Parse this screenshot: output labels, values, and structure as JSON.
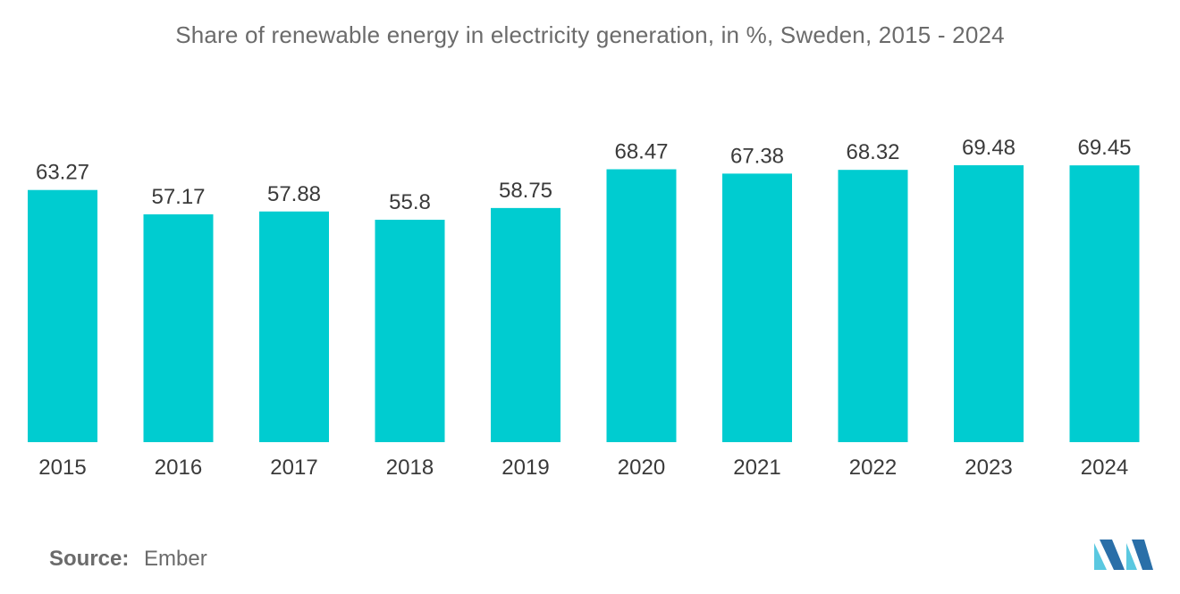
{
  "chart_data": {
    "type": "bar",
    "title": "Share of renewable energy in electricity generation, in %, Sweden, 2015 - 2024",
    "categories": [
      "2015",
      "2016",
      "2017",
      "2018",
      "2019",
      "2020",
      "2021",
      "2022",
      "2023",
      "2024"
    ],
    "values": [
      63.27,
      57.17,
      57.88,
      55.8,
      58.75,
      68.47,
      67.38,
      68.32,
      69.48,
      69.45
    ],
    "value_labels": [
      "63.27",
      "57.17",
      "57.88",
      "55.8",
      "58.75",
      "68.47",
      "67.38",
      "68.32",
      "69.48",
      "69.45"
    ],
    "xlabel": "",
    "ylabel": "",
    "ylim": [
      0,
      69.48
    ],
    "grid": false,
    "legend": "none",
    "bar_color": "#00ccd0"
  },
  "source": {
    "label": "Source:",
    "value": "Ember"
  },
  "logo": {
    "icon": "mordor-intelligence-logo-icon",
    "colors": [
      "#5ac8e0",
      "#2a6fa8"
    ]
  }
}
